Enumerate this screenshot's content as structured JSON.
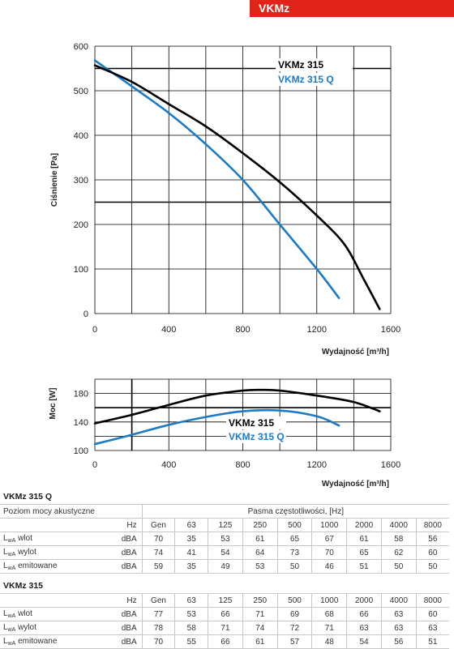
{
  "badge": "VKMz",
  "chart_data": [
    {
      "type": "line",
      "xlabel": "Wydajność [m³/h]",
      "ylabel": "Ciśnienie [Pa]",
      "xlim": [
        0,
        1600
      ],
      "ylim": [
        0,
        600
      ],
      "xticks": [
        "0",
        "400",
        "800",
        "1200",
        "1600"
      ],
      "yticks": [
        "0",
        "100",
        "200",
        "300",
        "400",
        "500",
        "600"
      ],
      "grid": true,
      "legend": "top-right",
      "series": [
        {
          "name": "VKMz 315 Q",
          "color": "#1b7bc4",
          "x": [
            0,
            200,
            400,
            600,
            800,
            1000,
            1200,
            1320
          ],
          "y": [
            568,
            510,
            450,
            380,
            300,
            200,
            100,
            35
          ]
        },
        {
          "name": "VKMz 315",
          "color": "#000000",
          "x": [
            0,
            200,
            400,
            600,
            800,
            1000,
            1200,
            1350,
            1450,
            1540
          ],
          "y": [
            557,
            520,
            470,
            420,
            360,
            295,
            220,
            155,
            80,
            10
          ]
        }
      ],
      "ref_lines_y": [
        550,
        250
      ]
    },
    {
      "type": "line",
      "xlabel": "Wydajność [m³/h]",
      "ylabel": "Moc [W]",
      "xlim": [
        0,
        1600
      ],
      "ylim": [
        100,
        200
      ],
      "xticks": [
        "0",
        "400",
        "800",
        "1200",
        "1600"
      ],
      "yticks": [
        "100",
        "140",
        "180"
      ],
      "grid": true,
      "legend": "center",
      "series": [
        {
          "name": "VKMz 315 Q",
          "color": "#1b7bc4",
          "x": [
            0,
            200,
            400,
            600,
            800,
            1000,
            1200,
            1320
          ],
          "y": [
            109,
            122,
            136,
            147,
            155,
            156,
            148,
            135
          ]
        },
        {
          "name": "VKMz 315",
          "color": "#000000",
          "x": [
            0,
            200,
            400,
            600,
            800,
            900,
            1000,
            1200,
            1400,
            1540
          ],
          "y": [
            138,
            150,
            164,
            177,
            184,
            185,
            184,
            177,
            168,
            155
          ]
        }
      ],
      "ref_lines_y": [
        160
      ],
      "ref_lines_x": [
        200
      ]
    }
  ],
  "tables": [
    {
      "title": "VKMz 315 Q",
      "header": {
        "label": "Poziom mocy akustyczne",
        "group": "Pasma częstotliwości, [Hz]"
      },
      "unit_header": "Hz",
      "columns": [
        "Gen",
        "63",
        "125",
        "250",
        "500",
        "1000",
        "2000",
        "4000",
        "8000"
      ],
      "rows": [
        {
          "lw": "L",
          "sub": "wA",
          "name": " wlot",
          "unit": "dBA",
          "values": [
            "70",
            "35",
            "53",
            "61",
            "65",
            "67",
            "61",
            "58",
            "56"
          ]
        },
        {
          "lw": "L",
          "sub": "wA",
          "name": " wylot",
          "unit": "dBA",
          "values": [
            "74",
            "41",
            "54",
            "64",
            "73",
            "70",
            "65",
            "62",
            "60"
          ]
        },
        {
          "lw": "L",
          "sub": "wA",
          "name": " emitowane",
          "unit": "dBA",
          "values": [
            "59",
            "35",
            "49",
            "53",
            "50",
            "46",
            "51",
            "50",
            "50"
          ]
        }
      ]
    },
    {
      "title": "VKMz 315",
      "unit_header": "Hz",
      "columns": [
        "Gen",
        "63",
        "125",
        "250",
        "500",
        "1000",
        "2000",
        "4000",
        "8000"
      ],
      "rows": [
        {
          "lw": "L",
          "sub": "wA",
          "name": " wlot",
          "unit": "dBA",
          "values": [
            "77",
            "53",
            "66",
            "71",
            "69",
            "68",
            "66",
            "63",
            "60"
          ]
        },
        {
          "lw": "L",
          "sub": "wA",
          "name": " wylot",
          "unit": "dBA",
          "values": [
            "78",
            "58",
            "71",
            "74",
            "72",
            "71",
            "63",
            "63",
            "63"
          ]
        },
        {
          "lw": "L",
          "sub": "wA",
          "name": " emitowane",
          "unit": "dBA",
          "values": [
            "70",
            "55",
            "66",
            "61",
            "57",
            "48",
            "54",
            "56",
            "51"
          ]
        }
      ]
    }
  ]
}
